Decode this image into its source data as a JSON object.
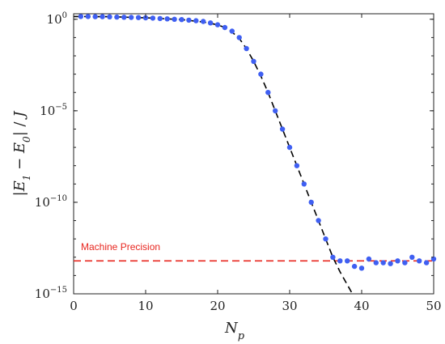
{
  "chart_data": {
    "type": "scatter",
    "xlabel": "N_p",
    "ylabel": "|E_1 − E_0| / J",
    "xlim": [
      0,
      50
    ],
    "ylim_log10": [
      -15,
      0.3
    ],
    "y_scale": "log",
    "x_ticks": [
      0,
      10,
      20,
      30,
      40,
      50
    ],
    "y_ticks": [
      {
        "exp": 0,
        "label": "10",
        "sup": "0"
      },
      {
        "exp": -5,
        "label": "10",
        "sup": "−5"
      },
      {
        "exp": -10,
        "label": "10",
        "sup": "−10"
      },
      {
        "exp": -15,
        "label": "10",
        "sup": "−15"
      }
    ],
    "grid": false,
    "colors": {
      "points": "#3f5ff2",
      "fit": "#000000",
      "precision": "#e8261f"
    },
    "series": [
      {
        "kind": "points",
        "x": [
          1,
          2,
          3,
          4,
          5,
          6,
          7,
          8,
          9,
          10,
          11,
          12,
          13,
          14,
          15,
          16,
          17,
          18,
          19,
          20,
          21,
          22,
          23,
          24,
          25,
          26,
          27,
          28,
          29,
          30,
          31,
          32,
          33,
          34,
          35,
          36,
          37,
          38,
          39,
          40,
          41,
          42,
          43,
          44,
          45,
          46,
          47,
          48,
          49,
          50
        ],
        "log10_y": [
          0.15,
          0.15,
          0.14,
          0.14,
          0.13,
          0.12,
          0.11,
          0.1,
          0.09,
          0.08,
          0.06,
          0.04,
          0.02,
          0.0,
          -0.02,
          -0.05,
          -0.08,
          -0.12,
          -0.2,
          -0.3,
          -0.45,
          -0.65,
          -1.0,
          -1.6,
          -2.3,
          -3.0,
          -4.0,
          -5.0,
          -6.0,
          -7.0,
          -8.0,
          -9.0,
          -10.0,
          -11.0,
          -12.0,
          -13.0,
          -13.2,
          -13.2,
          -13.5,
          -13.6,
          -13.1,
          -13.3,
          -13.3,
          -13.35,
          -13.2,
          -13.3,
          -13.0,
          -13.2,
          -13.3,
          -13.1
        ]
      },
      {
        "kind": "fit",
        "x": [
          0,
          5,
          10,
          15,
          18,
          20,
          21,
          22,
          23,
          24,
          25,
          26,
          27,
          28,
          29,
          30,
          31,
          32,
          33,
          34,
          35,
          36,
          37,
          38,
          39,
          40
        ],
        "log10_y": [
          0.15,
          0.14,
          0.08,
          -0.02,
          -0.15,
          -0.3,
          -0.45,
          -0.7,
          -1.05,
          -1.6,
          -2.3,
          -3.1,
          -4.0,
          -5.0,
          -6.0,
          -7.0,
          -8.0,
          -9.0,
          -10.0,
          -11.0,
          -12.0,
          -13.0,
          -13.8,
          -14.5,
          -15.2,
          -16.0
        ]
      }
    ],
    "annotations": [
      {
        "text": "Machine Precision",
        "log10_y": -13.2
      }
    ]
  }
}
